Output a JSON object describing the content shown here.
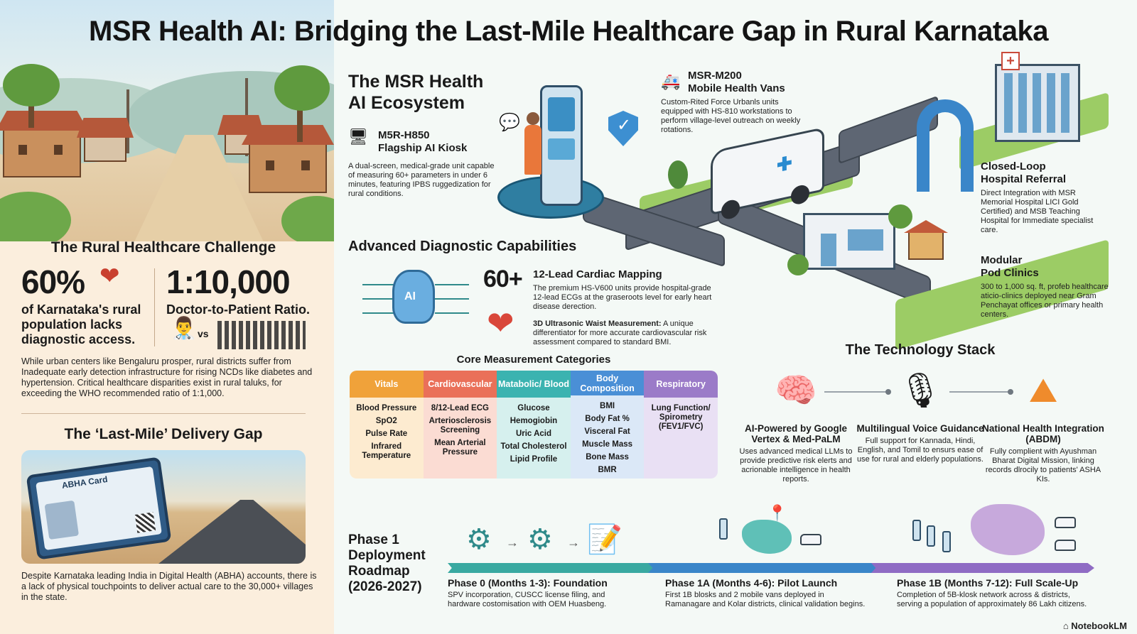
{
  "title": "MSR Health AI: Bridging the Last-Mile Healthcare Gap in Rural Karnataka",
  "challenge": {
    "heading": "The Rural Healthcare Challenge",
    "stat1_value": "60%",
    "stat1_caption": "of Karnataka's rural population lacks diagnostic access.",
    "stat2_value": "1:10,000",
    "stat2_caption": "Doctor-to-Patient Ratio.",
    "vs": "vs",
    "body": "While urban centers like Bengaluru prosper, rural districts suffer from Inadequate early detection infrastructure for rising NCDs like diabetes and hypertension. Critical healthcare disparities exist in rural taluks, for exceeding the WHO recommended ratio of 1:1,000."
  },
  "last_mile": {
    "heading": "The ‘Last-Mile’ Delivery Gap",
    "card_label": "ABHA Card",
    "body": "Despite Karnataka leading India in Digital Health (ABHA) accounts, there is a lack of physical touchpoints to deliver actual care to the 30,000+ villages in the state."
  },
  "ecosystem": {
    "heading_line1": "The MSR Health",
    "heading_line2": "AI Ecosystem",
    "kiosk": {
      "title_line1": "M5R-H850",
      "title_line2": "Flagship AI Kiosk",
      "body": "A dual-screen, medical-grade unit capable of measuring 60+ parameters in under 6 minutes, featuring IPBS ruggedization for rural conditions."
    },
    "van": {
      "title_line1": "MSR-M200",
      "title_line2": "Mobile Health Vans",
      "body": "Custom-Rited Force Urbanls units equipped with HS-810 workstations to perform village-level outreach on weekly rotations."
    },
    "referral": {
      "title_line1": "Closed-Loop",
      "title_line2": "Hospital Referral",
      "body": "Direct Integration with MSR Memorial Hospital LICI Gold Certified) and MSB Teaching Hospital for Immediate specialist care."
    },
    "pod": {
      "title_line1": "Modular",
      "title_line2": "Pod Clinics",
      "body": "300 to 1,000 sq. ft, profeb healthcare aticio-clinics deployed near Gram Penchayat offices or primary health centers."
    }
  },
  "diagnostics": {
    "heading": "Advanced Diagnostic Capabilities",
    "brain_label": "AI",
    "count": "60+",
    "cardiac_title": "12-Lead Cardiac Mapping",
    "cardiac_body": "The premium HS-V600 units provide hospital-grade 12-lead ECGs at the graseroots level for early heart disease derection.",
    "waist_title": "3D Ultrasonic Waist Measurement:",
    "waist_body": " A unique differentiator for more accurate cardiovascular risk assessment compared to standard BMI."
  },
  "core": {
    "heading": "Core Measurement Categories",
    "columns": [
      {
        "header": "Vitals",
        "color": "#f0a23a",
        "bg": "#fdebd0",
        "items": [
          "Blood Pressure",
          "SpO2",
          "Pulse Rate",
          "Infrared Temperature"
        ]
      },
      {
        "header": "Cardiovascular",
        "color": "#ea7059",
        "bg": "#fbdcd3",
        "items": [
          "8/12-Lead ECG",
          "Arteriosclerosis Screening",
          "Mean Arterial Pressure"
        ]
      },
      {
        "header": "Matabolic/ Blood",
        "color": "#3bb3b0",
        "bg": "#d6f0ee",
        "items": [
          "Glucose",
          "Hemogiobin",
          "Uric Acid",
          "Total Cholesterol",
          "Lipid Profile"
        ]
      },
      {
        "header": "Body Composition",
        "color": "#4a8fd6",
        "bg": "#dbe8f7",
        "items": [
          "BMI",
          "Body Fat %",
          "Visceral Fat",
          "Muscle Mass",
          "Bone Mass",
          "BMR"
        ]
      },
      {
        "header": "Respiratory",
        "color": "#9b7bc8",
        "bg": "#e9e0f4",
        "items": [
          "Lung Function/ Spirometry (FEV1/FVC)"
        ]
      }
    ]
  },
  "tech": {
    "heading": "The Technology Stack",
    "items": [
      {
        "title": "AI-Powered by Google Vertex & Med-PaLM",
        "body": "Uses advanced medical LLMs to provide predictive risk elerts and acrionable intelligence in health reports.",
        "icon": "brain-chip-icon"
      },
      {
        "title": "Multilingual Voice Guidance",
        "body": "Full support for Kannada, Hindi, English, and Tomil to ensurs ease of use for rural and elderly populations.",
        "icon": "microphone-icon"
      },
      {
        "title": "National Health Integration (ABDM)",
        "body": "Fully complient with Ayushman Bharat Digital Mission, linking records dlrocily to patients' ASHA KIs.",
        "icon": "india-map-icon"
      }
    ]
  },
  "roadmap": {
    "heading_lines": [
      "Phase 1",
      "Deployment",
      "Roadmap",
      "(2026-2027)"
    ],
    "phases": [
      {
        "title": "Phase 0 (Months 1-3): Foundation",
        "body": "SPV incorporation, CUSCC license filing, and hardware costomisation with OEM Huasbeng.",
        "color": "#39a9a1"
      },
      {
        "title": "Phase 1A (Months 4-6): Pilot Launch",
        "body": "First 1B blosks and 2 mobile vans deployed in Ramanagare and Kolar districts, clinical validation begins.",
        "color": "#3a86c9"
      },
      {
        "title": "Phase 1B (Months 7-12): Full Scale-Up",
        "body": "Completion of 5B-klosk network across & districts, serving a population of approximately 86 Lakh citizens.",
        "color": "#8f6cc4"
      }
    ]
  },
  "brand": "NotebookLM"
}
